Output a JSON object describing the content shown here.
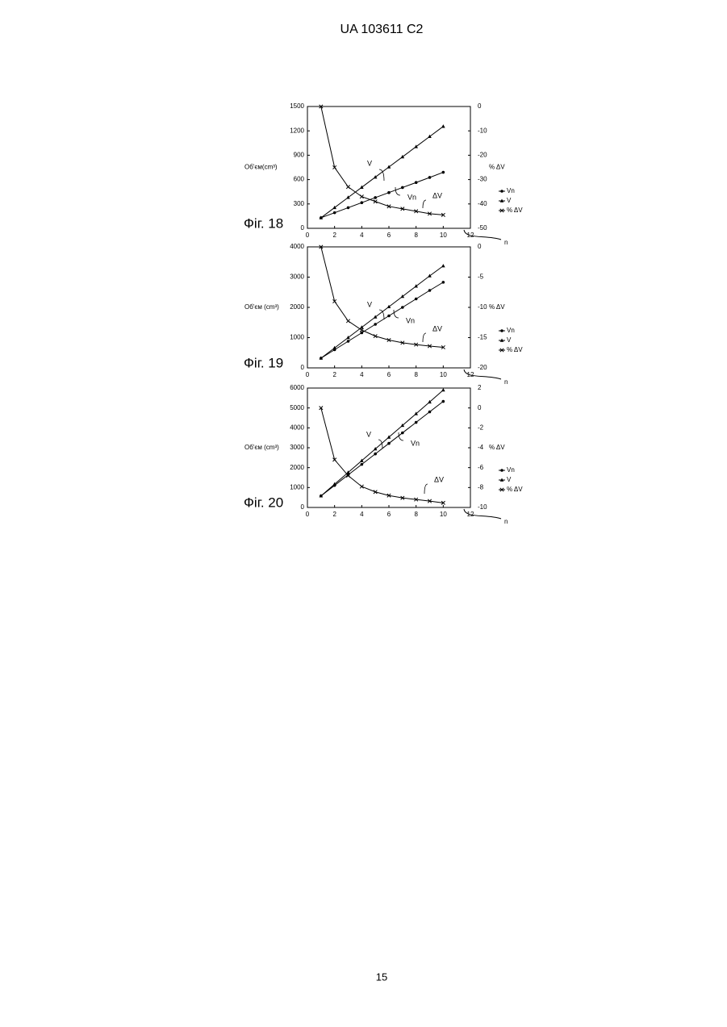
{
  "header": "UA   103611   C2",
  "page_number": "15",
  "chart_data": [
    {
      "type": "line",
      "title": "Фіг. 18",
      "xlabel": "n",
      "ylabel": "Об'єм(cm³)",
      "y2label": "% ΔV",
      "xlim": [
        0,
        12
      ],
      "xticks": [
        0,
        2,
        4,
        6,
        8,
        10,
        12
      ],
      "ylim": [
        0,
        1500
      ],
      "yticks": [
        0,
        300,
        600,
        900,
        1200,
        1500
      ],
      "y2lim": [
        -50,
        0
      ],
      "y2ticks": [
        -50,
        -40,
        -30,
        -20,
        -10,
        0
      ],
      "x": [
        1,
        2,
        3,
        4,
        5,
        6,
        7,
        8,
        9,
        10
      ],
      "legend": "right",
      "series": [
        {
          "name": "Vn",
          "color": "#000",
          "marker": "dot",
          "values": [
            130,
            192,
            254,
            316,
            378,
            440,
            502,
            564,
            626,
            690
          ]
        },
        {
          "name": "V",
          "color": "#000",
          "marker": "triangle",
          "values": [
            130,
            255,
            380,
            505,
            630,
            755,
            880,
            1005,
            1130,
            1255
          ]
        },
        {
          "name": "% ΔV",
          "color": "#000",
          "marker": "cross",
          "axis": "y2",
          "values": [
            0,
            -25,
            -33,
            -37,
            -39,
            -41,
            -42,
            -43,
            -44,
            -44.5
          ]
        }
      ],
      "annotations": [
        "V",
        "Vn",
        "ΔV"
      ]
    },
    {
      "type": "line",
      "title": "Фіг. 19",
      "xlabel": "n",
      "ylabel": "Об'єм (cm³)",
      "y2label": "% ΔV",
      "xlim": [
        0,
        12
      ],
      "xticks": [
        0,
        2,
        4,
        6,
        8,
        10,
        12
      ],
      "ylim": [
        0,
        4000
      ],
      "yticks": [
        0,
        1000,
        2000,
        3000,
        4000
      ],
      "y2lim": [
        -20,
        0
      ],
      "y2ticks": [
        -20,
        -15,
        -10,
        -5,
        0
      ],
      "x": [
        1,
        2,
        3,
        4,
        5,
        6,
        7,
        8,
        9,
        10
      ],
      "legend": "right",
      "series": [
        {
          "name": "Vn",
          "color": "#000",
          "marker": "dot",
          "values": [
            320,
            600,
            880,
            1160,
            1440,
            1720,
            2000,
            2280,
            2560,
            2830
          ]
        },
        {
          "name": "V",
          "color": "#000",
          "marker": "triangle",
          "values": [
            320,
            660,
            1000,
            1340,
            1680,
            2020,
            2360,
            2700,
            3040,
            3370
          ]
        },
        {
          "name": "% ΔV",
          "color": "#000",
          "marker": "cross",
          "axis": "y2",
          "values": [
            0,
            -9,
            -12.25,
            -13.75,
            -14.75,
            -15.4,
            -15.85,
            -16.15,
            -16.4,
            -16.6
          ]
        }
      ],
      "annotations": [
        "V",
        "Vn",
        "ΔV"
      ]
    },
    {
      "type": "line",
      "title": "Фіг. 20",
      "xlabel": "n",
      "ylabel": "Об'єм (cm³)",
      "y2label": "% ΔV",
      "xlim": [
        0,
        12
      ],
      "xticks": [
        0,
        2,
        4,
        6,
        8,
        10,
        12
      ],
      "ylim": [
        0,
        6000
      ],
      "yticks": [
        0,
        1000,
        2000,
        3000,
        4000,
        5000,
        6000
      ],
      "y2lim": [
        -10,
        2
      ],
      "y2ticks": [
        -10,
        -8,
        -6,
        -4,
        -2,
        0,
        2
      ],
      "x": [
        1,
        2,
        3,
        4,
        5,
        6,
        7,
        8,
        9,
        10
      ],
      "legend": "right",
      "series": [
        {
          "name": "Vn",
          "color": "#000",
          "marker": "dot",
          "values": [
            580,
            1108,
            1636,
            2164,
            2692,
            3220,
            3748,
            4276,
            4804,
            5330
          ]
        },
        {
          "name": "V",
          "color": "#000",
          "marker": "triangle",
          "values": [
            580,
            1170,
            1760,
            2350,
            2940,
            3530,
            4120,
            4710,
            5300,
            5900
          ]
        },
        {
          "name": "% ΔV",
          "color": "#000",
          "marker": "cross",
          "axis": "y2",
          "values": [
            0,
            -5.2,
            -6.8,
            -7.9,
            -8.44,
            -8.8,
            -9.04,
            -9.2,
            -9.36,
            -9.54
          ]
        }
      ],
      "annotations": [
        "V",
        "Vn",
        "ΔV"
      ]
    }
  ]
}
